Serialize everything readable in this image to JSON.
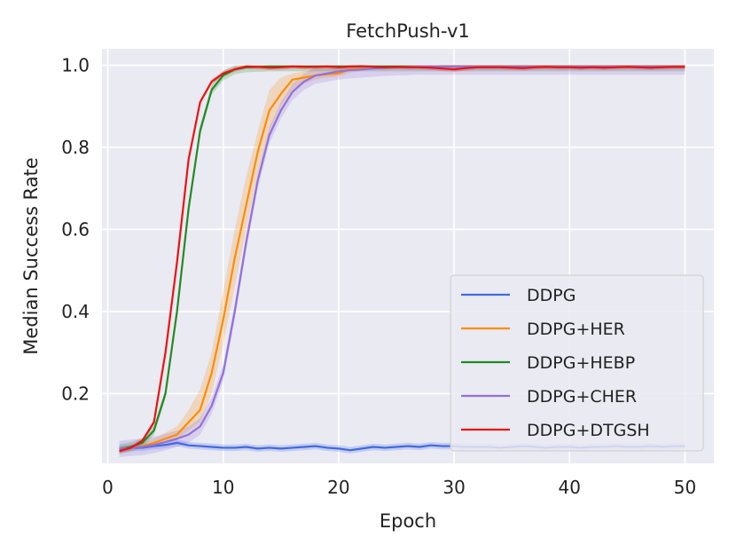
{
  "chart_data": {
    "type": "line",
    "title": "FetchPush-v1",
    "xlabel": "Epoch",
    "ylabel": "Median Success Rate",
    "xlim": [
      -0.5,
      52.5
    ],
    "ylim": [
      0.03,
      1.04
    ],
    "xticks": [
      0,
      10,
      20,
      30,
      40,
      50
    ],
    "yticks": [
      0.2,
      0.4,
      0.6,
      0.8,
      1.0
    ],
    "xtick_labels": [
      "0",
      "10",
      "20",
      "30",
      "40",
      "50"
    ],
    "ytick_labels": [
      "0.2",
      "0.4",
      "0.6",
      "0.8",
      "1.0"
    ],
    "grid": true,
    "legend_position": "lower-right",
    "series": [
      {
        "name": "DDPG",
        "color": "#4169e1",
        "x": [
          1,
          2,
          3,
          4,
          5,
          6,
          7,
          8,
          9,
          10,
          11,
          12,
          13,
          14,
          15,
          16,
          17,
          18,
          19,
          20,
          21,
          22,
          23,
          24,
          25,
          26,
          27,
          28,
          29,
          30,
          31,
          32,
          33,
          34,
          35,
          36,
          37,
          38,
          39,
          40,
          41,
          42,
          43,
          44,
          45,
          46,
          47,
          48,
          49,
          50
        ],
        "y": [
          0.065,
          0.068,
          0.068,
          0.072,
          0.075,
          0.08,
          0.074,
          0.072,
          0.07,
          0.068,
          0.068,
          0.07,
          0.066,
          0.068,
          0.066,
          0.068,
          0.07,
          0.072,
          0.068,
          0.066,
          0.062,
          0.066,
          0.07,
          0.068,
          0.07,
          0.072,
          0.07,
          0.074,
          0.072,
          0.072,
          0.07,
          0.07,
          0.07,
          0.068,
          0.07,
          0.072,
          0.07,
          0.068,
          0.07,
          0.07,
          0.068,
          0.07,
          0.07,
          0.072,
          0.07,
          0.07,
          0.072,
          0.07,
          0.072,
          0.072
        ],
        "band": 0.008
      },
      {
        "name": "DDPG+HER",
        "color": "#ff8c00",
        "x": [
          1,
          2,
          3,
          4,
          5,
          6,
          7,
          8,
          9,
          10,
          11,
          12,
          13,
          14,
          15,
          16,
          17,
          18,
          19,
          20,
          21,
          22,
          23,
          24,
          25,
          26,
          27,
          28,
          29,
          30,
          31,
          32,
          33,
          34,
          35,
          36,
          37,
          38,
          39,
          40,
          41,
          42,
          43,
          44,
          45,
          46,
          47,
          48,
          49,
          50
        ],
        "y": [
          0.065,
          0.068,
          0.072,
          0.08,
          0.09,
          0.1,
          0.13,
          0.16,
          0.25,
          0.38,
          0.53,
          0.66,
          0.79,
          0.89,
          0.93,
          0.965,
          0.97,
          0.975,
          0.978,
          0.98,
          0.99,
          0.992,
          0.994,
          0.995,
          0.996,
          0.997,
          0.997,
          0.997,
          0.998,
          0.998,
          0.998,
          0.998,
          0.998,
          0.998,
          0.998,
          0.998,
          0.998,
          0.998,
          0.998,
          0.998,
          0.998,
          0.998,
          0.998,
          0.998,
          0.998,
          0.998,
          0.998,
          0.998,
          0.998,
          0.998
        ],
        "band_upper": [
          0.07,
          0.074,
          0.08,
          0.09,
          0.105,
          0.12,
          0.16,
          0.21,
          0.3,
          0.45,
          0.6,
          0.73,
          0.84,
          0.94,
          0.97,
          0.98,
          0.985,
          0.99,
          0.99,
          0.992,
          0.995,
          0.996,
          0.997,
          0.998,
          0.998,
          0.999,
          0.999,
          0.999,
          0.999,
          0.999,
          0.999,
          0.999,
          0.999,
          0.999,
          0.999,
          0.999,
          0.999,
          0.999,
          0.999,
          0.999,
          0.999,
          0.999,
          0.999,
          0.999,
          0.999,
          0.999,
          0.999,
          0.999,
          0.999,
          0.999
        ],
        "band_lower": [
          0.06,
          0.064,
          0.066,
          0.072,
          0.08,
          0.088,
          0.11,
          0.13,
          0.2,
          0.32,
          0.46,
          0.6,
          0.74,
          0.84,
          0.9,
          0.94,
          0.955,
          0.965,
          0.97,
          0.972,
          0.982,
          0.986,
          0.99,
          0.992,
          0.993,
          0.995,
          0.995,
          0.995,
          0.996,
          0.996,
          0.996,
          0.996,
          0.996,
          0.996,
          0.996,
          0.996,
          0.996,
          0.996,
          0.996,
          0.996,
          0.996,
          0.996,
          0.996,
          0.996,
          0.996,
          0.996,
          0.996,
          0.996,
          0.996,
          0.996
        ]
      },
      {
        "name": "DDPG+HEBP",
        "color": "#228b22",
        "x": [
          1,
          2,
          3,
          4,
          5,
          6,
          7,
          8,
          9,
          10,
          11,
          12,
          13,
          14,
          15,
          16,
          17,
          18,
          19,
          20,
          21,
          22,
          23,
          24,
          25,
          26,
          27,
          28,
          29,
          30,
          31,
          32,
          33,
          34,
          35,
          36,
          37,
          38,
          39,
          40,
          41,
          42,
          43,
          44,
          45,
          46,
          47,
          48,
          49,
          50
        ],
        "y": [
          0.065,
          0.07,
          0.08,
          0.11,
          0.2,
          0.4,
          0.65,
          0.84,
          0.94,
          0.975,
          0.99,
          0.995,
          0.996,
          0.997,
          0.997,
          0.997,
          0.997,
          0.997,
          0.997,
          0.997,
          0.997,
          0.997,
          0.997,
          0.997,
          0.997,
          0.997,
          0.997,
          0.997,
          0.997,
          0.997,
          0.997,
          0.997,
          0.997,
          0.997,
          0.997,
          0.997,
          0.997,
          0.997,
          0.997,
          0.997,
          0.997,
          0.997,
          0.997,
          0.997,
          0.997,
          0.997,
          0.997,
          0.997,
          0.997,
          0.997
        ],
        "band": 0.012
      },
      {
        "name": "DDPG+CHER",
        "color": "#9370db",
        "x": [
          1,
          2,
          3,
          4,
          5,
          6,
          7,
          8,
          9,
          10,
          11,
          12,
          13,
          14,
          15,
          16,
          17,
          18,
          19,
          20,
          21,
          22,
          23,
          24,
          25,
          26,
          27,
          28,
          29,
          30,
          31,
          32,
          33,
          34,
          35,
          36,
          37,
          38,
          39,
          40,
          41,
          42,
          43,
          44,
          45,
          46,
          47,
          48,
          49,
          50
        ],
        "y": [
          0.065,
          0.068,
          0.07,
          0.075,
          0.082,
          0.09,
          0.1,
          0.12,
          0.17,
          0.25,
          0.4,
          0.57,
          0.72,
          0.83,
          0.89,
          0.935,
          0.96,
          0.975,
          0.98,
          0.985,
          0.988,
          0.99,
          0.992,
          0.994,
          0.995,
          0.996,
          0.997,
          0.997,
          0.997,
          0.997,
          0.997,
          0.997,
          0.997,
          0.997,
          0.997,
          0.997,
          0.997,
          0.997,
          0.997,
          0.997,
          0.997,
          0.997,
          0.997,
          0.997,
          0.997,
          0.997,
          0.997,
          0.997,
          0.997,
          0.997
        ],
        "band": 0.02
      },
      {
        "name": "DDPG+DTGSH",
        "color": "#ee1111",
        "x": [
          1,
          2,
          3,
          4,
          5,
          6,
          7,
          8,
          9,
          10,
          11,
          12,
          13,
          14,
          15,
          16,
          17,
          18,
          19,
          20,
          21,
          22,
          23,
          24,
          25,
          26,
          27,
          28,
          29,
          30,
          31,
          32,
          33,
          34,
          35,
          36,
          37,
          38,
          39,
          40,
          41,
          42,
          43,
          44,
          45,
          46,
          47,
          48,
          49,
          50
        ],
        "y": [
          0.06,
          0.068,
          0.085,
          0.13,
          0.3,
          0.52,
          0.77,
          0.91,
          0.96,
          0.98,
          0.99,
          0.997,
          0.996,
          0.994,
          0.995,
          0.997,
          0.996,
          0.996,
          0.997,
          0.995,
          0.997,
          0.998,
          0.996,
          0.995,
          0.996,
          0.995,
          0.995,
          0.994,
          0.992,
          0.99,
          0.993,
          0.995,
          0.995,
          0.995,
          0.994,
          0.993,
          0.995,
          0.996,
          0.995,
          0.995,
          0.994,
          0.995,
          0.994,
          0.995,
          0.996,
          0.995,
          0.994,
          0.995,
          0.996,
          0.996
        ],
        "band": 0.006
      }
    ]
  }
}
